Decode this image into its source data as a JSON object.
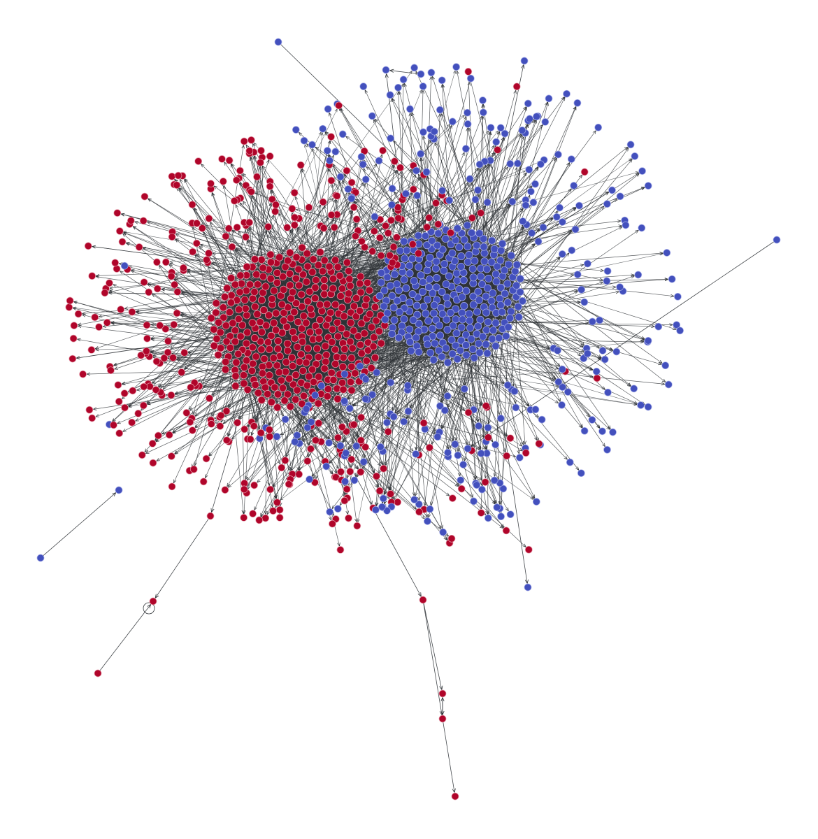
{
  "diagram": {
    "type": "directed-network",
    "background_color": "#ffffff",
    "edge_color": "#2f3337",
    "groups": [
      {
        "id": "red",
        "color": "#b0052a",
        "stroke": "#e6a0ae"
      },
      {
        "id": "blue",
        "color": "#4350bd",
        "stroke": "#a7aee8"
      }
    ]
  }
}
